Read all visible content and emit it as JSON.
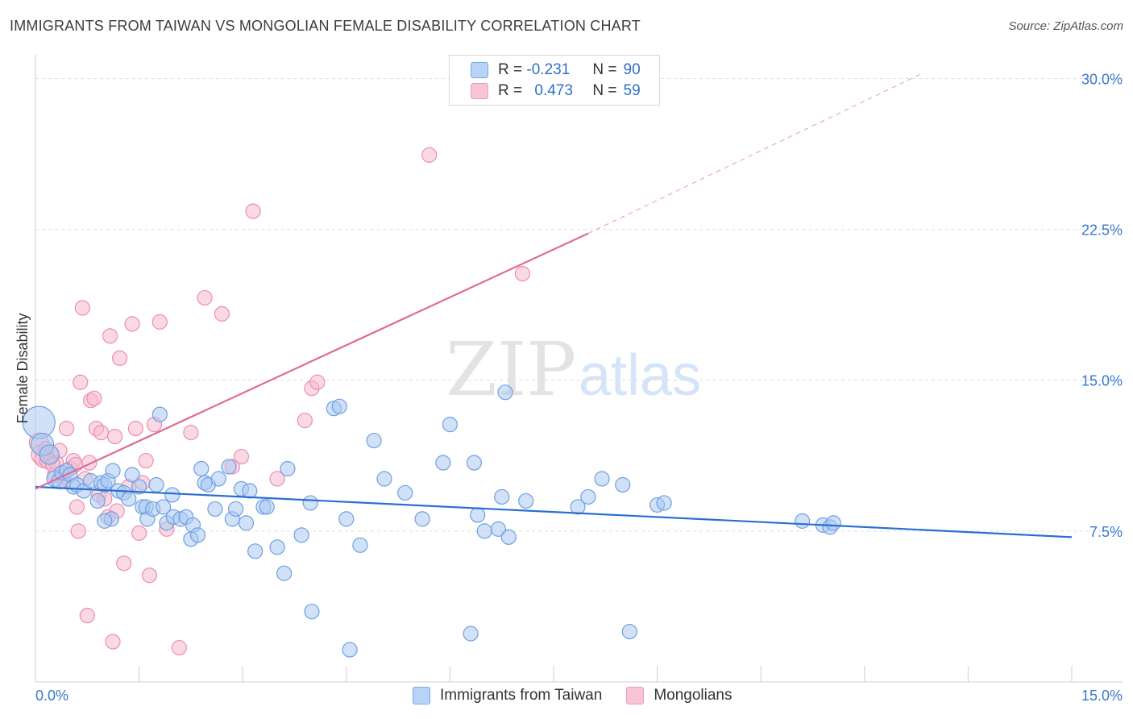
{
  "header": {
    "title": "IMMIGRANTS FROM TAIWAN VS MONGOLIAN FEMALE DISABILITY CORRELATION CHART",
    "source": "Source: ZipAtlas.com"
  },
  "watermark": {
    "zip": "ZIP",
    "atlas": "atlas"
  },
  "colors": {
    "blue_fill": "#a9c9f2",
    "blue_stroke": "#6fa0e0",
    "blue_line": "#2a6fcf",
    "pink_fill": "#f6b9cd",
    "pink_stroke": "#ec8db0",
    "pink_line": "#e06b98",
    "axis_text": "#3a78cc",
    "grid": "#dedede"
  },
  "legend_top": {
    "rows": [
      {
        "r_label": "R =",
        "r_value": "-0.231",
        "n_label": "N =",
        "n_value": "90"
      },
      {
        "r_label": "R =",
        "r_value": "0.473",
        "n_label": "N =",
        "n_value": "59"
      }
    ]
  },
  "legend_bottom": {
    "items": [
      {
        "label": "Immigrants from Taiwan"
      },
      {
        "label": "Mongolians"
      }
    ]
  },
  "chart_data": {
    "type": "scatter",
    "ylabel": "Female Disability",
    "xlim": [
      0,
      15
    ],
    "ylim": [
      0,
      30.7
    ],
    "x_tick_labels": [
      "0.0%",
      "15.0%"
    ],
    "y_ticks": [
      {
        "value": 30.0,
        "label": "30.0%"
      },
      {
        "value": 22.5,
        "label": "22.5%"
      },
      {
        "value": 15.0,
        "label": "15.0%"
      },
      {
        "value": 7.5,
        "label": "7.5%"
      }
    ],
    "grid": true,
    "series": [
      {
        "name": "Immigrants from Taiwan",
        "r": -0.231,
        "n": 90,
        "trend": {
          "x0": 0.0,
          "y0": 9.7,
          "x1": 15.0,
          "y1": 7.2,
          "dashed_to": null
        },
        "points": [
          [
            0.05,
            12.9,
            20
          ],
          [
            0.1,
            11.8,
            14
          ],
          [
            0.2,
            11.3,
            12
          ],
          [
            0.28,
            10.1,
            10
          ],
          [
            0.35,
            10.0,
            10
          ],
          [
            0.38,
            10.4,
            9
          ],
          [
            0.45,
            10.5,
            9
          ],
          [
            0.5,
            10.3,
            9
          ],
          [
            0.55,
            9.7,
            9
          ],
          [
            0.6,
            9.8,
            9
          ],
          [
            0.7,
            9.5,
            9
          ],
          [
            0.8,
            10.0,
            9
          ],
          [
            0.9,
            9.0,
            9
          ],
          [
            0.95,
            9.9,
            9
          ],
          [
            1.0,
            9.8,
            9
          ],
          [
            1.05,
            10.0,
            9
          ],
          [
            1.1,
            8.1,
            9
          ],
          [
            1.12,
            10.5,
            9
          ],
          [
            1.2,
            9.5,
            9
          ],
          [
            1.28,
            9.4,
            9
          ],
          [
            1.35,
            9.1,
            9
          ],
          [
            1.4,
            10.3,
            9
          ],
          [
            1.5,
            9.7,
            9
          ],
          [
            1.55,
            8.7,
            9
          ],
          [
            1.6,
            8.7,
            9
          ],
          [
            1.62,
            8.1,
            9
          ],
          [
            1.7,
            8.6,
            9
          ],
          [
            1.75,
            9.8,
            9
          ],
          [
            1.8,
            13.3,
            9
          ],
          [
            1.85,
            8.7,
            9
          ],
          [
            1.9,
            7.9,
            9
          ],
          [
            1.98,
            9.3,
            9
          ],
          [
            2.0,
            8.2,
            9
          ],
          [
            2.1,
            8.1,
            9
          ],
          [
            2.18,
            8.2,
            9
          ],
          [
            2.25,
            7.1,
            9
          ],
          [
            2.28,
            7.8,
            9
          ],
          [
            2.35,
            7.3,
            9
          ],
          [
            2.4,
            10.6,
            9
          ],
          [
            2.45,
            9.9,
            9
          ],
          [
            2.5,
            9.8,
            9
          ],
          [
            2.6,
            8.6,
            9
          ],
          [
            2.65,
            10.1,
            9
          ],
          [
            2.8,
            10.7,
            9
          ],
          [
            2.85,
            8.1,
            9
          ],
          [
            2.9,
            8.6,
            9
          ],
          [
            2.98,
            9.6,
            9
          ],
          [
            3.05,
            7.9,
            9
          ],
          [
            3.1,
            9.5,
            9
          ],
          [
            3.18,
            6.5,
            9
          ],
          [
            3.3,
            8.7,
            9
          ],
          [
            3.35,
            8.7,
            9
          ],
          [
            3.5,
            6.7,
            9
          ],
          [
            3.6,
            5.4,
            9
          ],
          [
            3.65,
            10.6,
            9
          ],
          [
            3.85,
            7.3,
            9
          ],
          [
            3.98,
            8.9,
            9
          ],
          [
            4.0,
            3.5,
            9
          ],
          [
            4.32,
            13.6,
            9
          ],
          [
            4.4,
            13.7,
            9
          ],
          [
            4.5,
            8.1,
            9
          ],
          [
            4.55,
            1.6,
            9
          ],
          [
            4.7,
            6.8,
            9
          ],
          [
            4.9,
            12.0,
            9
          ],
          [
            5.05,
            10.1,
            9
          ],
          [
            5.35,
            9.4,
            9
          ],
          [
            5.6,
            8.1,
            9
          ],
          [
            5.9,
            10.9,
            9
          ],
          [
            6.0,
            12.8,
            9
          ],
          [
            6.3,
            2.4,
            9
          ],
          [
            6.35,
            10.9,
            9
          ],
          [
            6.4,
            8.3,
            9
          ],
          [
            6.5,
            7.5,
            9
          ],
          [
            6.7,
            7.6,
            9
          ],
          [
            6.75,
            9.2,
            9
          ],
          [
            6.8,
            14.4,
            9
          ],
          [
            6.85,
            7.2,
            9
          ],
          [
            7.1,
            9.0,
            9
          ],
          [
            7.85,
            8.7,
            9
          ],
          [
            8.0,
            9.2,
            9
          ],
          [
            8.2,
            10.1,
            9
          ],
          [
            8.5,
            9.8,
            9
          ],
          [
            8.6,
            2.5,
            9
          ],
          [
            9.0,
            8.8,
            9
          ],
          [
            9.1,
            8.9,
            9
          ],
          [
            11.1,
            8.0,
            9
          ],
          [
            11.4,
            7.8,
            9
          ],
          [
            11.5,
            7.7,
            9
          ],
          [
            11.55,
            7.9,
            9
          ],
          [
            1.0,
            8.0,
            9
          ]
        ]
      },
      {
        "name": "Mongolians",
        "r": 0.473,
        "n": 59,
        "trend": {
          "x0": 0.0,
          "y0": 9.6,
          "x1": 8.0,
          "y1": 22.3,
          "dashed_to": {
            "x": 12.8,
            "y": 30.2
          }
        },
        "points": [
          [
            0.05,
            11.9,
            12
          ],
          [
            0.08,
            11.3,
            12
          ],
          [
            0.12,
            11.1,
            11
          ],
          [
            0.18,
            11.0,
            10
          ],
          [
            0.22,
            11.3,
            10
          ],
          [
            0.28,
            10.3,
            9
          ],
          [
            0.3,
            10.9,
            9
          ],
          [
            0.35,
            11.5,
            9
          ],
          [
            0.42,
            10.0,
            9
          ],
          [
            0.45,
            12.6,
            9
          ],
          [
            0.5,
            10.6,
            9
          ],
          [
            0.55,
            11.0,
            9
          ],
          [
            0.58,
            10.8,
            9
          ],
          [
            0.6,
            8.7,
            9
          ],
          [
            0.62,
            7.5,
            9
          ],
          [
            0.65,
            14.9,
            9
          ],
          [
            0.68,
            18.6,
            9
          ],
          [
            0.72,
            10.1,
            9
          ],
          [
            0.75,
            3.3,
            9
          ],
          [
            0.78,
            10.9,
            9
          ],
          [
            0.8,
            14.0,
            9
          ],
          [
            0.85,
            14.1,
            9
          ],
          [
            0.88,
            12.6,
            9
          ],
          [
            0.92,
            9.3,
            9
          ],
          [
            0.95,
            12.4,
            9
          ],
          [
            1.0,
            9.1,
            9
          ],
          [
            1.05,
            8.2,
            9
          ],
          [
            1.08,
            17.2,
            9
          ],
          [
            1.12,
            2.0,
            9
          ],
          [
            1.18,
            8.5,
            9
          ],
          [
            1.22,
            16.1,
            9
          ],
          [
            1.28,
            5.9,
            9
          ],
          [
            1.35,
            9.7,
            9
          ],
          [
            1.4,
            17.8,
            9
          ],
          [
            1.45,
            12.6,
            9
          ],
          [
            1.5,
            7.4,
            9
          ],
          [
            1.6,
            11.0,
            9
          ],
          [
            1.65,
            5.3,
            9
          ],
          [
            1.72,
            12.8,
            9
          ],
          [
            1.8,
            17.9,
            9
          ],
          [
            1.9,
            7.6,
            9
          ],
          [
            2.08,
            1.7,
            9
          ],
          [
            2.25,
            12.4,
            9
          ],
          [
            2.45,
            19.1,
            9
          ],
          [
            2.7,
            18.3,
            9
          ],
          [
            2.85,
            10.7,
            9
          ],
          [
            2.98,
            11.2,
            9
          ],
          [
            3.15,
            23.4,
            9
          ],
          [
            3.5,
            10.1,
            9
          ],
          [
            3.9,
            13.0,
            9
          ],
          [
            4.0,
            14.6,
            9
          ],
          [
            4.08,
            14.9,
            9
          ],
          [
            5.7,
            26.2,
            9
          ],
          [
            7.05,
            20.3,
            9
          ],
          [
            0.25,
            10.8,
            9
          ],
          [
            0.4,
            10.2,
            9
          ],
          [
            0.15,
            11.6,
            9
          ],
          [
            1.15,
            12.2,
            9
          ],
          [
            1.55,
            9.9,
            9
          ]
        ]
      }
    ]
  }
}
